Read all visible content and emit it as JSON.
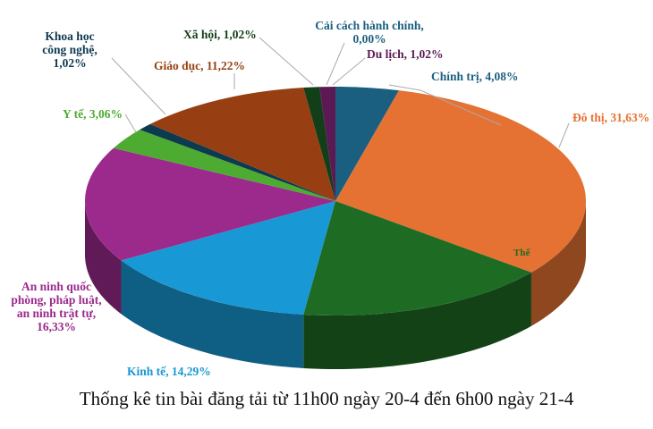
{
  "chart_data": {
    "type": "pie",
    "style": "3d",
    "title": "Thống kê tin bài đăng tải từ 11h00 ngày 20-4 đến 6h00 ngày 21-4",
    "slices": [
      {
        "label": "Chính trị",
        "value": 4.08,
        "text": "Chính trị, 4,08%",
        "color": "#1b5f80"
      },
      {
        "label": "Đô thị",
        "value": 31.63,
        "text": "Đô thị, 31,63%",
        "color": "#e57232"
      },
      {
        "label": "Thể",
        "value": 16.33,
        "text": "Thể",
        "color": "#1e6b23"
      },
      {
        "label": "Kinh tế",
        "value": 14.29,
        "text": "Kinh tế, 14,29%",
        "color": "#1898d4"
      },
      {
        "label": "An ninh quốc phòng, pháp luật, an ninh trật tự",
        "value": 16.33,
        "text": "An ninh quốc\nphòng, pháp luật,\nan ninh trật tự,\n16,33%",
        "color": "#9b2a8c"
      },
      {
        "label": "Y tế",
        "value": 3.06,
        "text": "Y tế, 3,06%",
        "color": "#4dab32"
      },
      {
        "label": "Khoa học công nghệ",
        "value": 1.02,
        "text": "Khoa học\ncông nghệ,\n1,02%",
        "color": "#0e3a50"
      },
      {
        "label": "Giáo dục",
        "value": 11.22,
        "text": "Giáo dục, 11,22%",
        "color": "#973f12"
      },
      {
        "label": "Xã hội",
        "value": 1.02,
        "text": "Xã hội, 1,02%",
        "color": "#123e18"
      },
      {
        "label": "Cải cách hành chính",
        "value": 0.0,
        "text": "Cải cách hành chính,\n0,00%",
        "color": "#1b5f80"
      },
      {
        "label": "Du lịch",
        "value": 1.02,
        "text": "Du lịch, 1,02%",
        "color": "#5c1a55"
      }
    ]
  }
}
